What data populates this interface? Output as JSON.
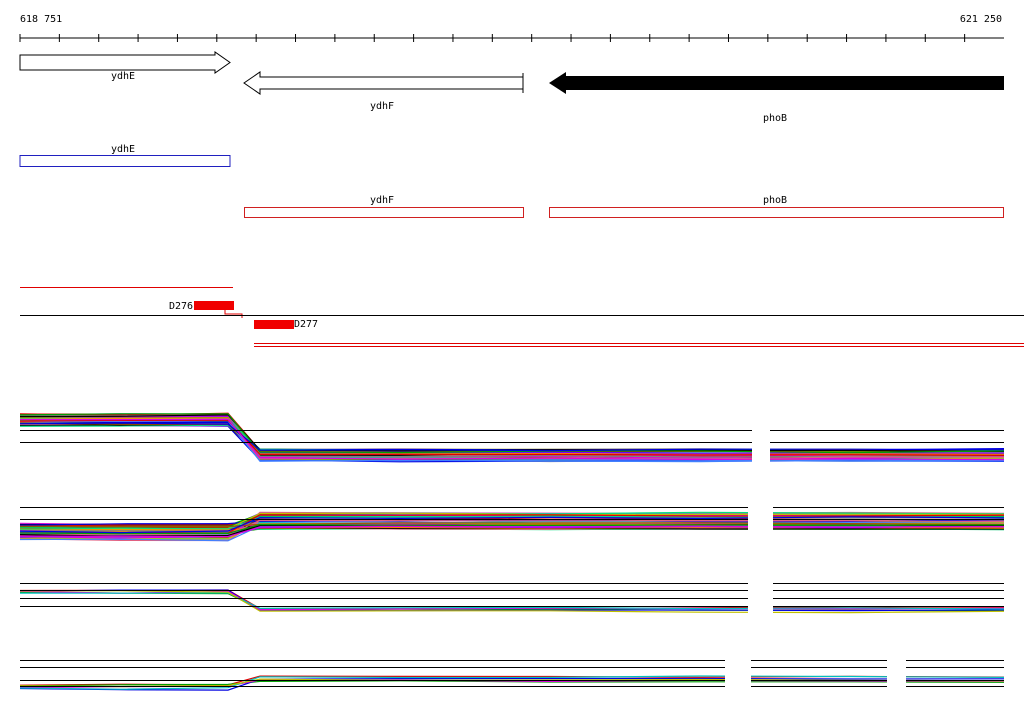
{
  "ruler": {
    "start": "618 751",
    "end": "621 250"
  },
  "genes": [
    {
      "label": "ydhE"
    },
    {
      "label": "ydhF"
    },
    {
      "label": "phoB"
    }
  ],
  "annotations": [
    {
      "label": "ydhE"
    },
    {
      "label": "ydhF"
    },
    {
      "label": "phoB"
    }
  ],
  "probes": [
    {
      "label": "D276"
    },
    {
      "label": "D277"
    }
  ]
}
